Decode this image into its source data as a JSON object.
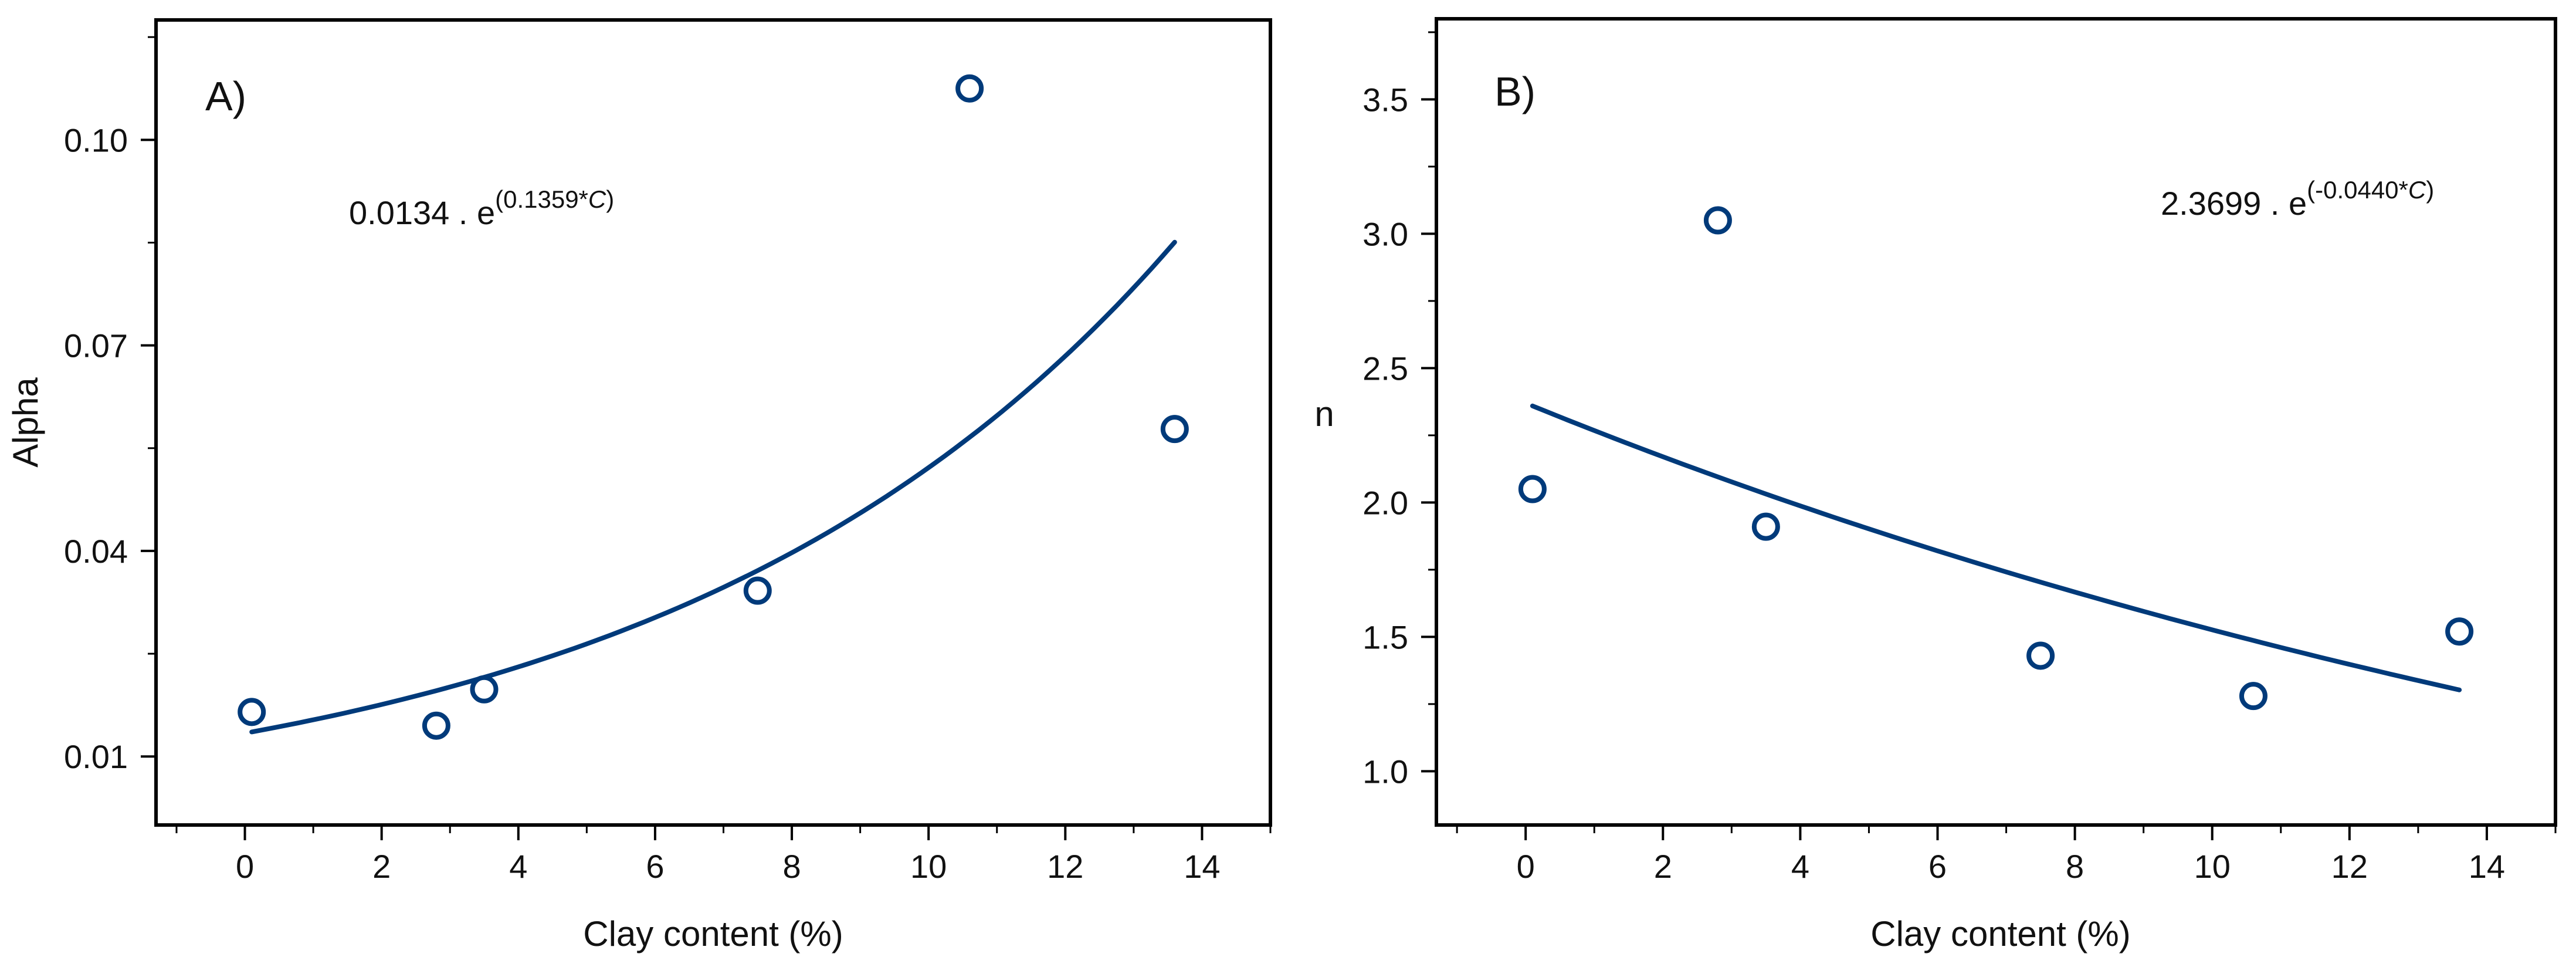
{
  "colors": {
    "series": "#003a7a",
    "axis": "#000000"
  },
  "chart_data": [
    {
      "type": "scatter",
      "panel_label": "A)",
      "xlabel": "Clay content (%)",
      "ylabel": "Alpha",
      "xlim": [
        -1.3,
        15.0
      ],
      "ylim": [
        0.0,
        0.1175
      ],
      "xticks": [
        0,
        2,
        4,
        6,
        8,
        10,
        12,
        14
      ],
      "xtick_labels": [
        "0",
        "2",
        "4",
        "6",
        "8",
        "10",
        "12",
        "14"
      ],
      "yticks": [
        0.01,
        0.04,
        0.07,
        0.1
      ],
      "ytick_labels": [
        "0.01",
        "0.04",
        "0.07",
        "0.10"
      ],
      "points": {
        "x": [
          0.1,
          2.8,
          3.5,
          7.5,
          10.6,
          13.6
        ],
        "y": [
          0.0165,
          0.0145,
          0.0198,
          0.0342,
          0.1075,
          0.0578
        ]
      },
      "fit": {
        "model": "exponential",
        "a": 0.0134,
        "b": 0.1359,
        "x_range": [
          0.1,
          13.6
        ],
        "equation_prefix": "0.0134 . e",
        "equation_exponent_pre": "(0.1359*",
        "equation_exponent_var": "C",
        "equation_exponent_post": ")"
      }
    },
    {
      "type": "scatter",
      "panel_label": "B)",
      "xlabel": "Clay content (%)",
      "ylabel": "n",
      "xlim": [
        -1.3,
        15.0
      ],
      "ylim": [
        0.8,
        3.8
      ],
      "xticks": [
        0,
        2,
        4,
        6,
        8,
        10,
        12,
        14
      ],
      "xtick_labels": [
        "0",
        "2",
        "4",
        "6",
        "8",
        "10",
        "12",
        "14"
      ],
      "yticks": [
        1.0,
        1.5,
        2.0,
        2.5,
        3.0,
        3.5
      ],
      "ytick_labels": [
        "1.0",
        "1.5",
        "2.0",
        "2.5",
        "3.0",
        "3.5"
      ],
      "points": {
        "x": [
          0.1,
          2.8,
          3.5,
          7.5,
          10.6,
          13.6
        ],
        "y": [
          2.05,
          3.05,
          1.91,
          1.43,
          1.28,
          1.52
        ]
      },
      "fit": {
        "model": "exponential",
        "a": 2.3699,
        "b": -0.044,
        "x_range": [
          0.1,
          13.6
        ],
        "equation_prefix": "2.3699 . e",
        "equation_exponent_pre": "(-0.0440*",
        "equation_exponent_var": "C",
        "equation_exponent_post": ")"
      }
    }
  ]
}
